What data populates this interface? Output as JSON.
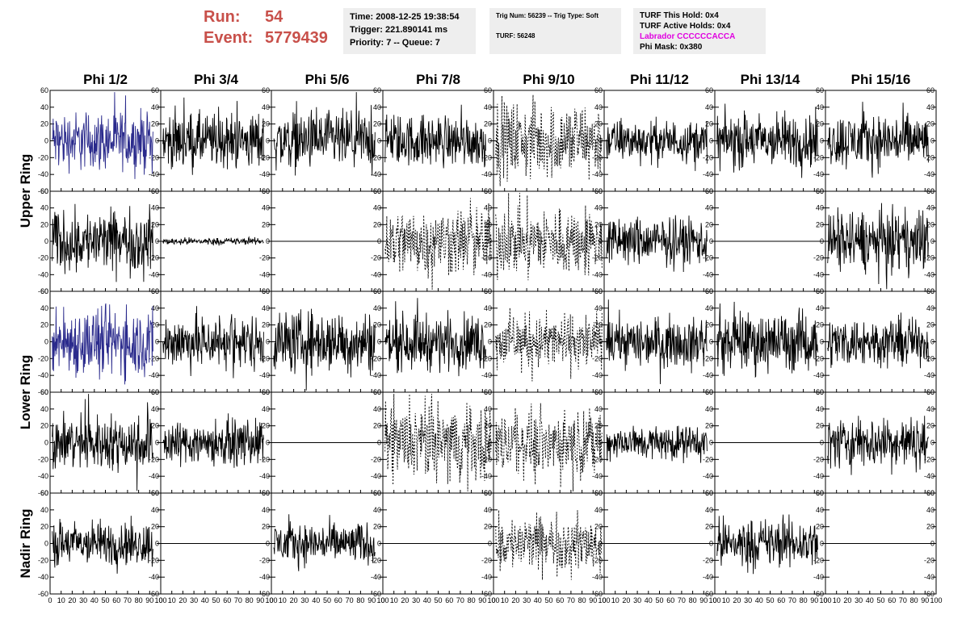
{
  "header": {
    "run_label": "Run:",
    "run_value": "54",
    "event_label": "Event:",
    "event_value": "5779439"
  },
  "info_time": {
    "time": "Time: 2008-12-25 19:38:54",
    "trigger": "Trigger: 221.890141 ms",
    "priority": "Priority: 7 -- Queue: 7"
  },
  "info_trig": {
    "trig": "Trig Num: 56239 -- Trig Type: Soft",
    "turf": "TURF: 56248"
  },
  "info_turf": {
    "hold": "TURF This Hold: 0x4",
    "active": "TURF Active Holds: 0x4",
    "labrador": "Labrador CCCCCCACCA",
    "phimask": "Phi Mask: 0x380"
  },
  "chart_data": {
    "type": "line",
    "columns": [
      "Phi 1/2",
      "Phi 3/4",
      "Phi 5/6",
      "Phi 7/8",
      "Phi 9/10",
      "Phi 11/12",
      "Phi 13/14",
      "Phi 15/16"
    ],
    "row_groups": [
      "Upper Ring",
      "Lower Ring",
      "Nadir Ring"
    ],
    "xlim": [
      0,
      100
    ],
    "ylim": [
      -60,
      60
    ],
    "y_ticks": [
      -60,
      -40,
      -20,
      0,
      20,
      40,
      60
    ],
    "x_ticks": [
      0,
      10,
      20,
      30,
      40,
      50,
      60,
      70,
      80,
      90,
      100
    ],
    "styles": {
      "solid": "#000000",
      "blue": "#2a2a8c",
      "dashed": "#000000"
    },
    "panels": [
      [
        "blue",
        "solid",
        "solid",
        "solid",
        "dashed",
        "solid",
        "solid",
        "solid"
      ],
      [
        "solid",
        "flat-small",
        "flat",
        "dashed",
        "dashed",
        "solid",
        "flat",
        "solid"
      ],
      [
        "blue",
        "solid",
        "solid",
        "solid",
        "dashed",
        "solid",
        "solid",
        "solid"
      ],
      [
        "solid",
        "solid",
        "flat",
        "dashed",
        "dashed",
        "solid",
        "flat",
        "solid"
      ],
      [
        "solid",
        "flat",
        "solid",
        "flat",
        "dashed",
        "flat",
        "solid",
        "flat"
      ]
    ],
    "amplitudes": [
      [
        17,
        16,
        17,
        15,
        22,
        12,
        16,
        16
      ],
      [
        18,
        2,
        0,
        20,
        20,
        14,
        0,
        18
      ],
      [
        20,
        16,
        18,
        16,
        16,
        14,
        17,
        14
      ],
      [
        16,
        13,
        0,
        22,
        18,
        10,
        0,
        15
      ],
      [
        13,
        0,
        12,
        0,
        16,
        0,
        14,
        0
      ]
    ]
  }
}
